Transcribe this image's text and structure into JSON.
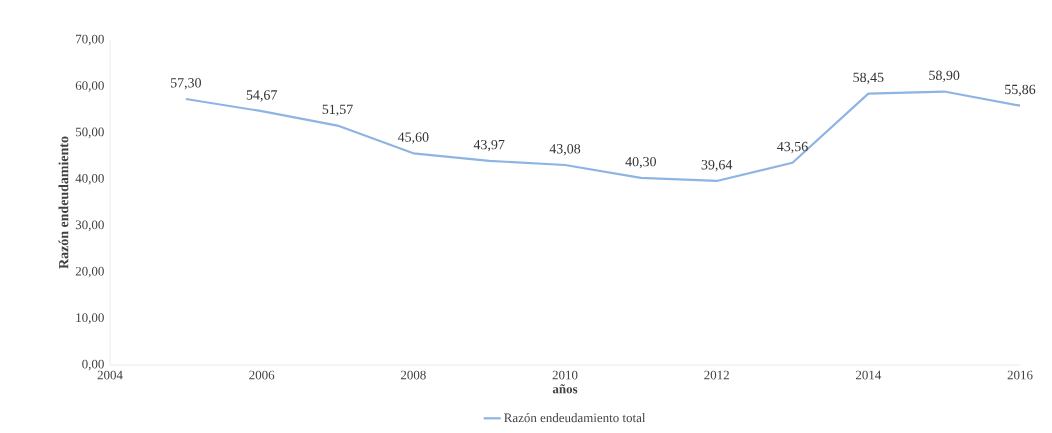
{
  "chart_data": {
    "type": "line",
    "xlabel": "años",
    "ylabel": "Razón endeudamiento",
    "x": [
      2005,
      2006,
      2007,
      2008,
      2009,
      2010,
      2011,
      2012,
      2013,
      2014,
      2015,
      2016
    ],
    "series": [
      {
        "name": "Razón endeudamiento total",
        "color": "#8eb4e3",
        "values": [
          57.3,
          54.67,
          51.57,
          45.6,
          43.97,
          43.08,
          40.3,
          39.64,
          43.56,
          58.45,
          58.9,
          55.86
        ],
        "value_labels": [
          "57,30",
          "54,67",
          "51,57",
          "45,60",
          "43,97",
          "43,08",
          "40,30",
          "39,64",
          "43,56",
          "58,45",
          "58,90",
          "55,86"
        ]
      }
    ],
    "xlim": [
      2004,
      2016
    ],
    "ylim": [
      0,
      70
    ],
    "xticks": [
      2004,
      2006,
      2008,
      2010,
      2012,
      2014,
      2016
    ],
    "yticks": [
      {
        "value": 0,
        "label": "0,00"
      },
      {
        "value": 10,
        "label": "10,00"
      },
      {
        "value": 20,
        "label": "20,00"
      },
      {
        "value": 30,
        "label": "30,00"
      },
      {
        "value": 40,
        "label": "40,00"
      },
      {
        "value": 50,
        "label": "50,00"
      },
      {
        "value": 60,
        "label": "60,00"
      },
      {
        "value": 70,
        "label": "70,00"
      }
    ],
    "legend": "bottom",
    "marker": "none",
    "line_style": "solid",
    "grid": false
  }
}
